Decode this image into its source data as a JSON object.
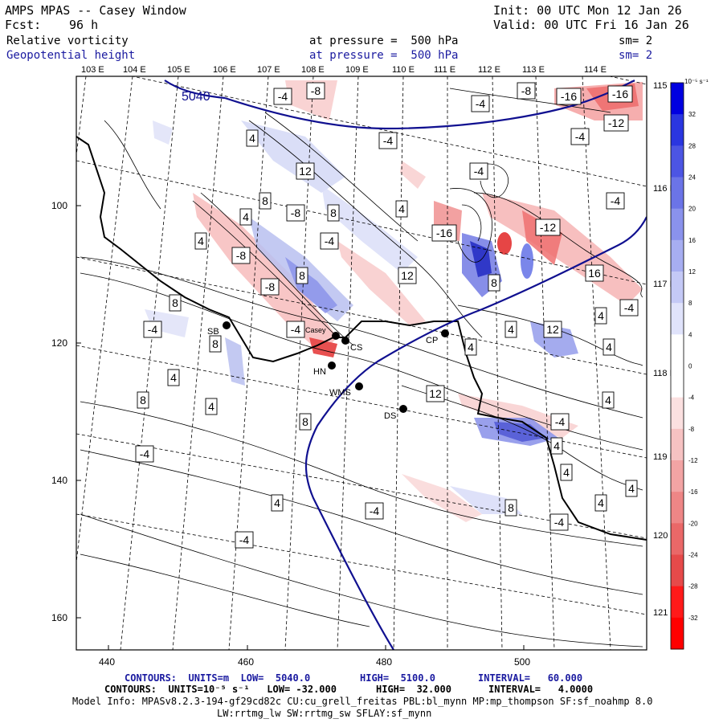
{
  "header": {
    "model": "AMPS MPAS -- Casey Window",
    "fcst_label": "Fcst:",
    "fcst_value": "96 h",
    "init": "Init: 00 UTC Mon 12 Jan 26",
    "valid": "Valid: 00 UTC Fri 16 Jan 26",
    "field1_name": "Relative vorticity",
    "field1_level": "at pressure =  500 hPa",
    "field1_sm": "sm= 2",
    "field2_name": "Geopotential height",
    "field2_level": "at pressure =  500 hPa",
    "field2_sm": "sm= 2"
  },
  "colors": {
    "positive": "#3344dd",
    "negative": "#ee3333",
    "height_contour": "#101090",
    "frame": "#000000"
  },
  "top_lon_labels": [
    "103 E",
    "104 E",
    "105 E",
    "106 E",
    "107 E",
    "108 E",
    "109 E",
    "110 E",
    "111 E",
    "112 E",
    "113 E",
    "114 E"
  ],
  "right_lat_labels": [
    "115 E",
    "116 E",
    "117 E",
    "118 E",
    "119 E",
    "120 E",
    "121 E"
  ],
  "y_ticks": [
    "100",
    "120",
    "140",
    "160"
  ],
  "x_ticks": [
    "440",
    "460",
    "480",
    "500"
  ],
  "height_label": "5040",
  "colorbar": {
    "unit": "10⁻⁵ s⁻¹",
    "labels": [
      "32",
      "28",
      "24",
      "20",
      "16",
      "12",
      "8",
      "4",
      "0",
      "-4",
      "-8",
      "-12",
      "-16",
      "-20",
      "-24",
      "-28",
      "-32"
    ]
  },
  "stations": [
    {
      "name": "SB"
    },
    {
      "name": "Casey"
    },
    {
      "name": "CS"
    },
    {
      "name": "HN"
    },
    {
      "name": "WMS"
    },
    {
      "name": "DS"
    },
    {
      "name": "CP"
    }
  ],
  "contour_labels": [
    "-8",
    "-4",
    "-8",
    "-16",
    "-16",
    "-4",
    "-12",
    "-4",
    "-4",
    "12",
    "4",
    "-4",
    "-4",
    "8",
    "4",
    "4",
    "-8",
    "-16",
    "8",
    "-12",
    "-4",
    "4",
    "-8",
    "16",
    "8",
    "12",
    "8",
    "-8",
    "-4",
    "8",
    "12",
    "4",
    "4",
    "4",
    "-4",
    "-4",
    "4",
    "8",
    "12",
    "4",
    "8",
    "4",
    "8",
    "-4",
    "4",
    "-4",
    "4",
    "4",
    "8",
    "4",
    "4",
    "-4",
    "4",
    "-4",
    "-4"
  ],
  "footer": {
    "line1_a": "CONTOURS:  UNITS=m  LOW=  5040.0",
    "line1_b": "HIGH=  5100.0",
    "line1_c": "INTERVAL=   60.000",
    "line2_a": "CONTOURS:  UNITS=10⁻⁵ s⁻¹   LOW= -32.000",
    "line2_b": "HIGH=  32.000",
    "line2_c": "INTERVAL=   4.0000",
    "line3": "Model Info: MPASv8.2.3-194-gf29cd82c CU:cu_grell_freitas PBL:bl_mynn MP:mp_thompson SF:sf_noahmp 8.0",
    "line4": "LW:rrtmg_lw SW:rrtmg_sw SFLAY:sf_mynn"
  }
}
